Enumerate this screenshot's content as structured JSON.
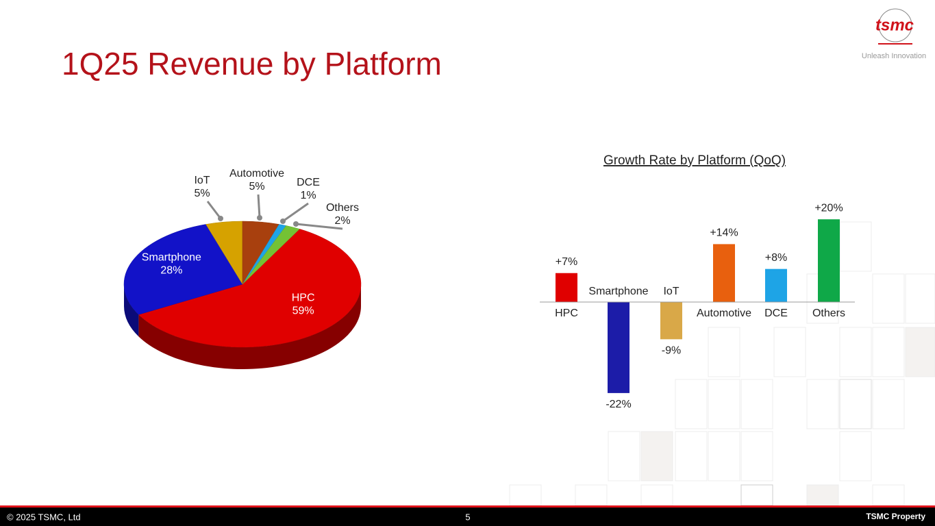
{
  "title": "1Q25 Revenue by Platform",
  "logo": {
    "name": "tsmc",
    "tagline": "Unleash Innovation"
  },
  "footer": {
    "copyright": "© 2025 TSMC, Ltd",
    "page": "5",
    "property": "TSMC Property"
  },
  "chart_data": [
    {
      "type": "pie",
      "categories": [
        "HPC",
        "Smartphone",
        "IoT",
        "Automotive",
        "DCE",
        "Others"
      ],
      "values": [
        59,
        28,
        5,
        5,
        1,
        2
      ],
      "value_labels": [
        "59%",
        "28%",
        "5%",
        "5%",
        "1%",
        "2%"
      ],
      "colors": [
        "#e00000",
        "#1212c8",
        "#d6a200",
        "#a8400e",
        "#1ea4e6",
        "#74c234"
      ]
    },
    {
      "type": "bar",
      "title": "Growth Rate by Platform (QoQ)",
      "categories": [
        "HPC",
        "Smartphone",
        "IoT",
        "Automotive",
        "DCE",
        "Others"
      ],
      "values": [
        7,
        -22,
        -9,
        14,
        8,
        20
      ],
      "value_labels": [
        "+7%",
        "-22%",
        "-9%",
        "+14%",
        "+8%",
        "+20%"
      ],
      "colors": [
        "#e00000",
        "#1c1ca8",
        "#d9a848",
        "#e8600e",
        "#1ea4e6",
        "#0fa848"
      ],
      "ylim": [
        -25,
        25
      ]
    }
  ]
}
